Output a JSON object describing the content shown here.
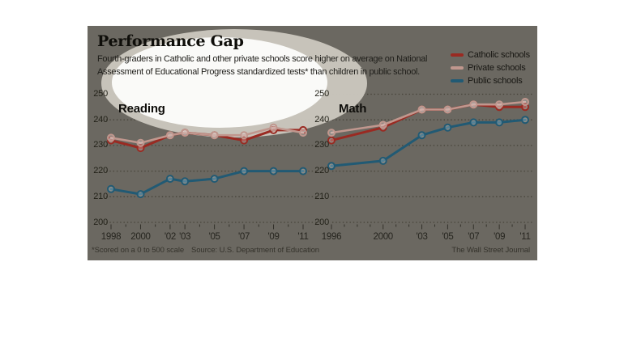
{
  "page": {
    "background": "#ffffff"
  },
  "panel": {
    "background": "#6b6861"
  },
  "header": {
    "title": "Performance Gap",
    "subtitle_line1": "Fourth-graders in Catholic and other private schools score higher on average on National",
    "subtitle_line2": "Assessment of Educational Progress standardized tests* than children in public school."
  },
  "legend": {
    "position": "top-right",
    "items": [
      {
        "label": "Catholic schools",
        "color": "#9a2a22"
      },
      {
        "label": "Private schools",
        "color": "#c0978e"
      },
      {
        "label": "Public schools",
        "color": "#215a74"
      }
    ]
  },
  "annotation": {
    "type": "highlight-ellipse",
    "ring_color": "#cbc7bd",
    "fill_color": "#fdfdfb"
  },
  "chart_data": [
    {
      "type": "line",
      "title": "Reading",
      "x": [
        1998,
        2000,
        2002,
        2003,
        2005,
        2007,
        2009,
        2011
      ],
      "x_tick_labels": [
        "1998",
        "2000",
        "'02",
        "'03",
        "'05",
        "'07",
        "'09",
        "'11"
      ],
      "ylim": [
        200,
        250
      ],
      "y_ticks": [
        200,
        210,
        220,
        230,
        240,
        250
      ],
      "grid": "dotted",
      "series": [
        {
          "name": "Catholic schools",
          "color": "#9a2a22",
          "values": [
            232,
            229,
            234,
            235,
            234,
            232,
            236,
            236
          ]
        },
        {
          "name": "Private schools",
          "color": "#c0978e",
          "values": [
            233,
            231,
            234,
            235,
            234,
            234,
            237,
            235
          ]
        },
        {
          "name": "Public schools",
          "color": "#215a74",
          "values": [
            213,
            211,
            217,
            216,
            217,
            220,
            220,
            220
          ]
        }
      ]
    },
    {
      "type": "line",
      "title": "Math",
      "x": [
        1996,
        2000,
        2003,
        2005,
        2007,
        2009,
        2011
      ],
      "x_tick_labels": [
        "1996",
        "2000",
        "'03",
        "'05",
        "'07",
        "'09",
        "'11"
      ],
      "ylim": [
        200,
        250
      ],
      "y_ticks": [
        200,
        210,
        220,
        230,
        240,
        250
      ],
      "grid": "dotted",
      "series": [
        {
          "name": "Catholic schools",
          "color": "#9a2a22",
          "values": [
            232,
            237,
            244,
            244,
            246,
            245,
            245
          ]
        },
        {
          "name": "Private schools",
          "color": "#c0978e",
          "values": [
            235,
            238,
            244,
            244,
            246,
            246,
            247
          ]
        },
        {
          "name": "Public schools",
          "color": "#215a74",
          "values": [
            222,
            224,
            234,
            237,
            239,
            239,
            240
          ]
        }
      ]
    }
  ],
  "footer": {
    "footnote": "*Scored on a 0 to 500 scale",
    "source": "Source: U.S. Department of Education",
    "credit": "The Wall Street Journal"
  }
}
